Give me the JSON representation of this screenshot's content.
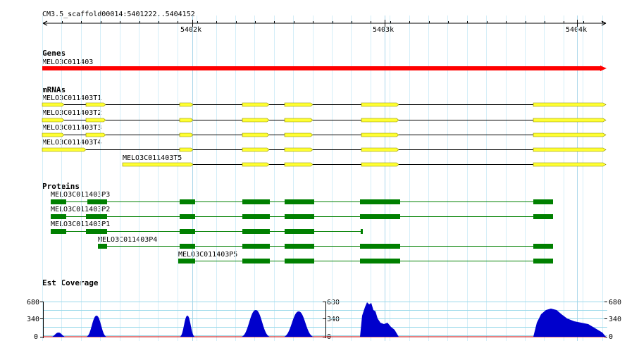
{
  "ruler": {
    "title": "CM3.5_scaffold00014:5401222..5404152",
    "ticks": [
      "5402k",
      "5403k",
      "5404k"
    ]
  },
  "genes": {
    "header": "Genes",
    "name": "MELO3C011403",
    "color": "#ff0000"
  },
  "mrnas": {
    "header": "mRNAs",
    "exon_color": "#ffff33",
    "items": [
      "MELO3C011403T1",
      "MELO3C011403T2",
      "MELO3C011403T3",
      "MELO3C011403T4",
      "MELO3C011403T5"
    ]
  },
  "proteins": {
    "header": "Proteins",
    "color": "#008000",
    "items": [
      "MELO3C011403P3",
      "MELO3C011403P2",
      "MELO3C011403P1",
      "MELO3C011403P4",
      "MELO3C011403P5"
    ]
  },
  "coverage": {
    "header": "Est Coverage",
    "color": "#0000cc",
    "axis_labels": [
      "680",
      "340",
      "0"
    ]
  }
}
